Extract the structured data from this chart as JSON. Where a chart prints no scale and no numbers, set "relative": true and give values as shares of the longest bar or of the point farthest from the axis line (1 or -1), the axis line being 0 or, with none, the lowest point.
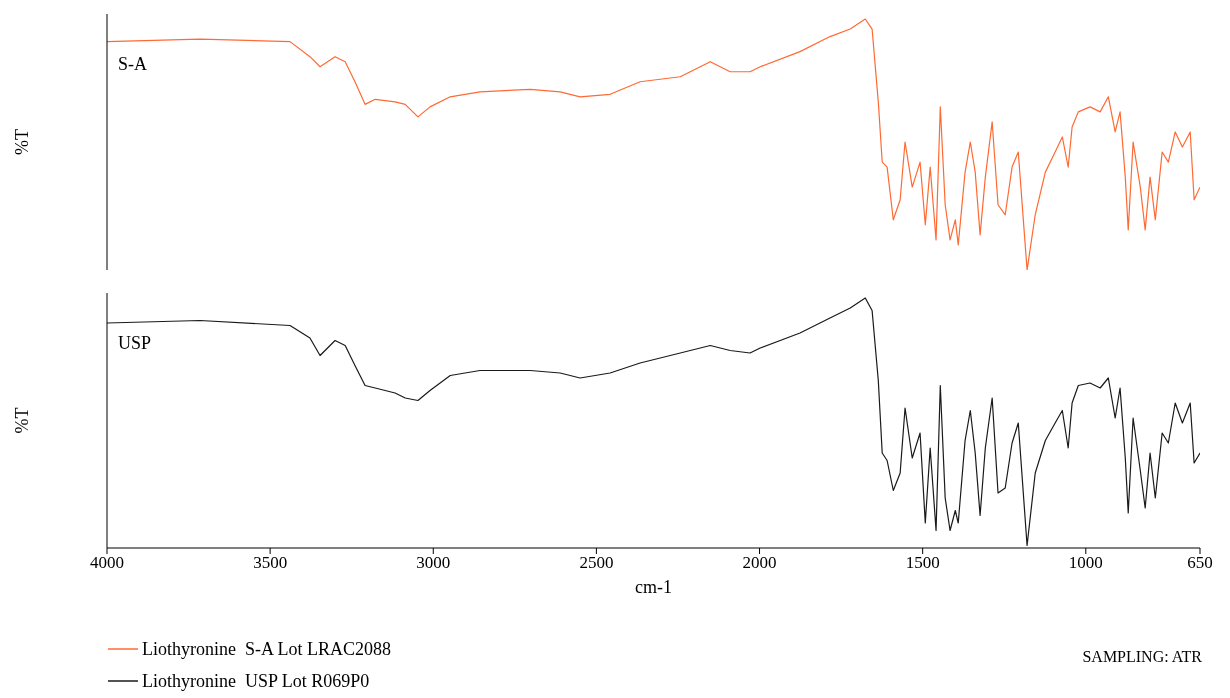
{
  "chart_data": [
    {
      "type": "line",
      "ylabel": "%T",
      "relative": true,
      "tick_labels": false,
      "xlim": [
        4000,
        650
      ],
      "legend": "bottom",
      "marker": "none",
      "line_style": "solid",
      "grid": false,
      "annotations": [
        "S-A"
      ],
      "x": [
        4000,
        3715,
        3439,
        3378,
        3347,
        3301,
        3270,
        3240,
        3209,
        3178,
        3117,
        3086,
        3047,
        3010,
        2948,
        2857,
        2703,
        2611,
        2550,
        2458,
        2366,
        2243,
        2151,
        2090,
        2029,
        1998,
        1876,
        1784,
        1722,
        1676,
        1655,
        1636,
        1624,
        1609,
        1590,
        1569,
        1554,
        1532,
        1508,
        1492,
        1477,
        1459,
        1446,
        1431,
        1416,
        1400,
        1391,
        1370,
        1354,
        1339,
        1324,
        1308,
        1287,
        1269,
        1247,
        1226,
        1207,
        1180,
        1155,
        1124,
        1094,
        1072,
        1054,
        1042,
        1023,
        987,
        956,
        931,
        910,
        895,
        879,
        870,
        855,
        833,
        818,
        803,
        787,
        766,
        747,
        726,
        704,
        680,
        668,
        650
      ],
      "series": [
        {
          "name": "Liothyronine  S-A Lot LRAC2088",
          "color": "#ff6a33",
          "values": [
            0.91,
            0.92,
            0.91,
            0.85,
            0.81,
            0.85,
            0.83,
            0.75,
            0.66,
            0.68,
            0.67,
            0.66,
            0.61,
            0.65,
            0.69,
            0.71,
            0.72,
            0.71,
            0.69,
            0.7,
            0.75,
            0.77,
            0.83,
            0.79,
            0.79,
            0.81,
            0.87,
            0.93,
            0.96,
            1.0,
            0.96,
            0.67,
            0.43,
            0.41,
            0.2,
            0.28,
            0.51,
            0.33,
            0.43,
            0.18,
            0.41,
            0.12,
            0.65,
            0.26,
            0.12,
            0.2,
            0.1,
            0.39,
            0.51,
            0.39,
            0.14,
            0.37,
            0.59,
            0.26,
            0.22,
            0.41,
            0.47,
            0,
            0.22,
            0.39,
            0.47,
            0.53,
            0.41,
            0.57,
            0.63,
            0.65,
            0.63,
            0.69,
            0.55,
            0.63,
            0.37,
            0.16,
            0.51,
            0.33,
            0.16,
            0.37,
            0.2,
            0.47,
            0.43,
            0.55,
            0.49,
            0.55,
            0.28,
            0.33
          ]
        }
      ]
    },
    {
      "type": "line",
      "ylabel": "%T",
      "xlabel": "cm-1",
      "relative": true,
      "tick_labels": "x",
      "xlim": [
        4000,
        650
      ],
      "xticks": [
        4000,
        3500,
        3000,
        2500,
        2000,
        1500,
        1000,
        650
      ],
      "legend": "bottom",
      "marker": "none",
      "line_style": "solid",
      "grid": false,
      "annotations": [
        "USP",
        "SAMPLING: ATR"
      ],
      "x": [
        4000,
        3715,
        3439,
        3378,
        3347,
        3301,
        3270,
        3240,
        3209,
        3178,
        3117,
        3086,
        3047,
        3010,
        2948,
        2857,
        2703,
        2611,
        2550,
        2458,
        2366,
        2243,
        2151,
        2090,
        2029,
        1998,
        1876,
        1784,
        1722,
        1676,
        1655,
        1636,
        1624,
        1609,
        1590,
        1569,
        1554,
        1532,
        1508,
        1492,
        1477,
        1459,
        1446,
        1431,
        1416,
        1400,
        1391,
        1370,
        1354,
        1339,
        1324,
        1308,
        1287,
        1269,
        1247,
        1226,
        1207,
        1180,
        1155,
        1124,
        1094,
        1072,
        1054,
        1042,
        1023,
        987,
        956,
        931,
        910,
        895,
        879,
        870,
        855,
        833,
        818,
        803,
        787,
        766,
        747,
        726,
        704,
        680,
        668,
        650
      ],
      "series": [
        {
          "name": "Liothyronine  USP Lot R069P0",
          "color": "#1a1a1a",
          "values": [
            0.9,
            0.91,
            0.89,
            0.84,
            0.77,
            0.83,
            0.81,
            0.73,
            0.65,
            0.64,
            0.62,
            0.6,
            0.59,
            0.63,
            0.69,
            0.71,
            0.71,
            0.7,
            0.68,
            0.7,
            0.74,
            0.78,
            0.81,
            0.79,
            0.78,
            0.8,
            0.86,
            0.92,
            0.96,
            1.0,
            0.95,
            0.67,
            0.38,
            0.35,
            0.23,
            0.3,
            0.56,
            0.36,
            0.46,
            0.1,
            0.4,
            0.07,
            0.65,
            0.2,
            0.07,
            0.15,
            0.1,
            0.43,
            0.55,
            0.38,
            0.13,
            0.4,
            0.6,
            0.22,
            0.24,
            0.42,
            0.5,
            0.01,
            0.3,
            0.43,
            0.5,
            0.55,
            0.4,
            0.58,
            0.65,
            0.66,
            0.64,
            0.68,
            0.52,
            0.64,
            0.36,
            0.14,
            0.52,
            0.31,
            0.16,
            0.38,
            0.2,
            0.46,
            0.42,
            0.58,
            0.5,
            0.58,
            0.34,
            0.38
          ]
        }
      ]
    }
  ]
}
